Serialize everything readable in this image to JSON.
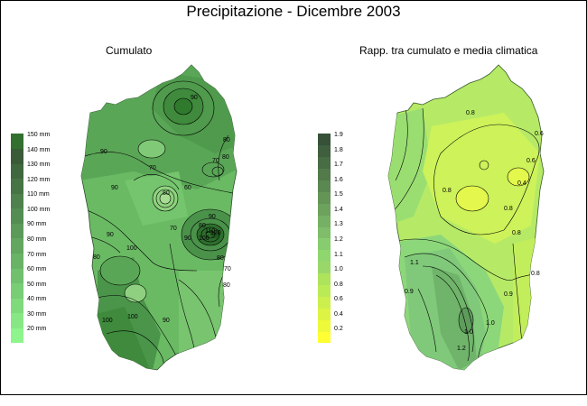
{
  "title": "Precipitazione - Dicembre 2003",
  "left_map": {
    "subtitle": "Cumulato",
    "legend": {
      "colors": [
        "#8ef58c",
        "#86e784",
        "#7fda7c",
        "#78cd75",
        "#70c06e",
        "#69b367",
        "#62a660",
        "#5b9a59",
        "#548d52",
        "#4e814b",
        "#477444",
        "#40683e",
        "#3a5b37",
        "#337030"
      ],
      "labels": [
        "20 mm",
        "30 mm",
        "40 mm",
        "50 mm",
        "60 mm",
        "70 mm",
        "80 mm",
        "90 mm",
        "100 mm",
        "110 mm",
        "120 mm",
        "130 mm",
        "140 mm",
        "150 mm"
      ]
    },
    "contour_labels": [
      "90",
      "90",
      "90",
      "80",
      "70",
      "80",
      "70",
      "80",
      "70",
      "60",
      "90",
      "100",
      "80",
      "100",
      "90",
      "100",
      "90",
      "80",
      "70",
      "80",
      "90",
      "80",
      "100",
      "110",
      "120"
    ]
  },
  "right_map": {
    "subtitle": "Rapp. tra cumulato e media climatica",
    "legend": {
      "colors": [
        "#ffff33",
        "#eef93a",
        "#ddf444",
        "#ccef4e",
        "#bbea57",
        "#aee35c",
        "#9ad76a",
        "#8fd66f",
        "#88cc70",
        "#7fbd6a",
        "#76b064",
        "#6da25e",
        "#649557",
        "#5b8751",
        "#527a4b",
        "#486c44",
        "#3f5f3e",
        "#365138"
      ],
      "labels": [
        "0.2",
        "0.4",
        "0.6",
        "0.8",
        "1.0",
        "1.1",
        "1.2",
        "1.3",
        "1.4",
        "1.5",
        "1.6",
        "1.7",
        "1.8",
        "1.9"
      ]
    },
    "contour_labels": [
      "0.8",
      "0.6",
      "0.6",
      "0.8",
      "0.4",
      "0.8",
      "0.8",
      "0.8",
      "0.9",
      "1.1",
      "0.9",
      "1.0",
      "1.0",
      "1.2"
    ]
  }
}
